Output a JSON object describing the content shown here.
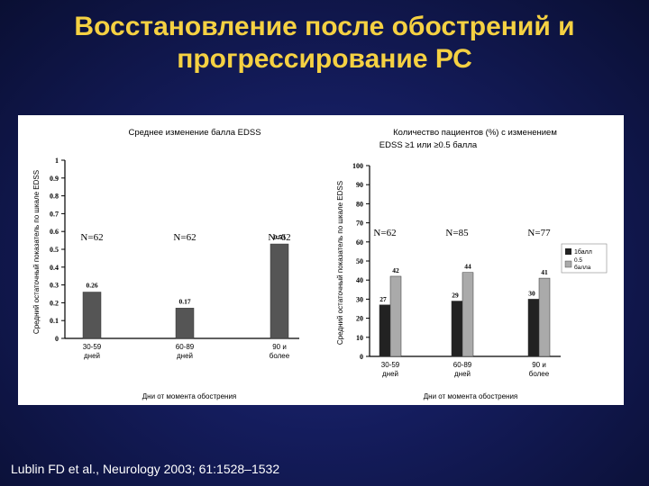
{
  "slide": {
    "title_line1": "Восстановление после обострений и",
    "title_line2": "прогрессирование РС",
    "citation": "Lublin FD et al., Neurology 2003; 61:1528–1532"
  },
  "chart_data": [
    {
      "type": "bar",
      "title": "Среднее изменение балла EDSS",
      "ylabel": "Средний остаточный показатель по шкале EDSS",
      "xlabel": "Дни от момента обострения",
      "categories": [
        [
          "30-59",
          "дней"
        ],
        [
          "60-89",
          "дней"
        ],
        [
          "90 и",
          "более"
        ]
      ],
      "n_labels": [
        "N=62",
        "N=62",
        "N=62"
      ],
      "values": [
        0.26,
        0.17,
        0.53
      ],
      "data_labels": [
        "0.26",
        "0.17",
        "0.53"
      ],
      "ylim": [
        0,
        1
      ],
      "yticks": [
        0,
        0.1,
        0.2,
        0.3,
        0.4,
        0.5,
        0.6,
        0.7,
        0.8,
        0.9,
        1
      ],
      "ytick_labels": [
        "0",
        "0.1",
        "0.2",
        "0.3",
        "0.4",
        "0.5",
        "0.6",
        "0.7",
        "0.8",
        "0.9",
        "1"
      ],
      "grid": false,
      "bar_color": "#555555"
    },
    {
      "type": "bar",
      "title_line1": "Количество пациентов (%) с изменением",
      "title_line2": "EDSS ≥1 или ≥0.5 балла",
      "ylabel": "Средний остаточный показатель по шкале EDSS",
      "xlabel": "Дни от момента обострения",
      "categories": [
        [
          "30-59",
          "дней"
        ],
        [
          "60-89",
          "дней"
        ],
        [
          "90 и",
          "более"
        ]
      ],
      "n_labels": [
        "N=62",
        "N=85",
        "N=77"
      ],
      "series": [
        {
          "name": "1балл",
          "values": [
            27,
            29,
            30
          ],
          "labels": [
            "27",
            "29",
            "30"
          ],
          "color": "#222222"
        },
        {
          "name": "0.5 балла",
          "values": [
            42,
            44,
            41
          ],
          "labels": [
            "42",
            "44",
            "41"
          ],
          "color": "#aaaaaa"
        }
      ],
      "ylim": [
        0,
        100
      ],
      "yticks": [
        0,
        10,
        20,
        30,
        40,
        50,
        60,
        70,
        80,
        90,
        100
      ],
      "ytick_labels": [
        "0",
        "10",
        "20",
        "30",
        "40",
        "50",
        "60",
        "70",
        "80",
        "90",
        "100"
      ],
      "legend": "right",
      "grid": false
    }
  ]
}
